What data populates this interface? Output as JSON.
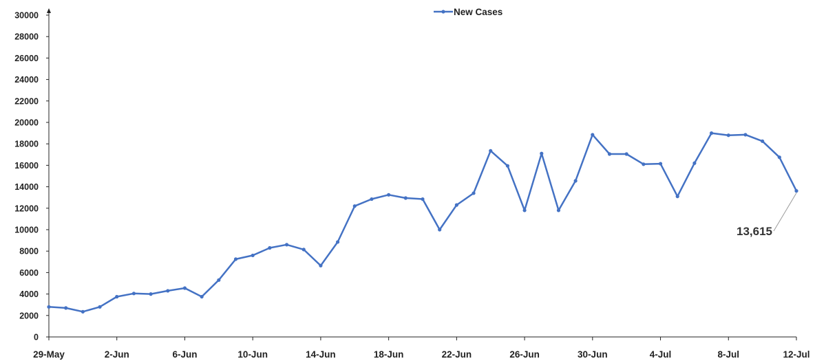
{
  "chart_data": {
    "type": "line",
    "title": "",
    "xlabel": "",
    "ylabel": "",
    "ylim": [
      0,
      30000
    ],
    "y_ticks": [
      0,
      2000,
      4000,
      6000,
      8000,
      10000,
      12000,
      14000,
      16000,
      18000,
      20000,
      22000,
      24000,
      26000,
      28000,
      30000
    ],
    "x_tick_labels": [
      "29-May",
      "2-Jun",
      "6-Jun",
      "10-Jun",
      "14-Jun",
      "18-Jun",
      "22-Jun",
      "26-Jun",
      "30-Jun",
      "4-Jul",
      "8-Jul",
      "12-Jul"
    ],
    "x_tick_every": 4,
    "x": [
      "29-May",
      "30-May",
      "31-May",
      "1-Jun",
      "2-Jun",
      "3-Jun",
      "4-Jun",
      "5-Jun",
      "6-Jun",
      "7-Jun",
      "8-Jun",
      "9-Jun",
      "10-Jun",
      "11-Jun",
      "12-Jun",
      "13-Jun",
      "14-Jun",
      "15-Jun",
      "16-Jun",
      "17-Jun",
      "18-Jun",
      "19-Jun",
      "20-Jun",
      "21-Jun",
      "22-Jun",
      "23-Jun",
      "24-Jun",
      "25-Jun",
      "26-Jun",
      "27-Jun",
      "28-Jun",
      "29-Jun",
      "30-Jun",
      "1-Jul",
      "2-Jul",
      "3-Jul",
      "4-Jul",
      "5-Jul",
      "6-Jul",
      "7-Jul",
      "8-Jul",
      "9-Jul",
      "10-Jul",
      "11-Jul",
      "12-Jul"
    ],
    "series": [
      {
        "name": "New Cases",
        "color": "#4472C4",
        "values": [
          2800,
          2700,
          2350,
          2800,
          3750,
          4050,
          4000,
          4300,
          4550,
          3750,
          5300,
          7250,
          7600,
          8300,
          8600,
          8150,
          6650,
          8850,
          12200,
          12850,
          13250,
          12950,
          12850,
          10000,
          12300,
          13400,
          17350,
          15950,
          11800,
          17100,
          11800,
          14550,
          18850,
          17050,
          17050,
          16100,
          16150,
          13100,
          16200,
          19000,
          18800,
          18850,
          18250,
          16750,
          13615
        ]
      }
    ],
    "annotations": [
      {
        "text": "13,615",
        "point_index": 44
      }
    ],
    "legend": {
      "position": "top-center",
      "entries": [
        "New Cases"
      ]
    },
    "grid": false
  }
}
